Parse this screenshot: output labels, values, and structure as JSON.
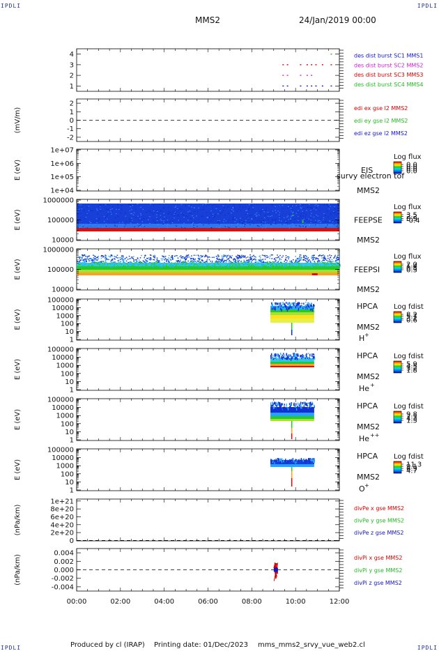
{
  "corners": {
    "tl": "IPDLI",
    "tr": "IPDLI",
    "bl": "IPDLI",
    "br": "IPDLI"
  },
  "header": {
    "spacecraft": "MMS2",
    "datetime": "24/Jan/2019 00:00"
  },
  "footer": {
    "producer": "Produced by cl (IRAP)",
    "printing": "Printing date: 01/Dec/2023",
    "file": "mms_mms2_srvy_vue_web2.cl"
  },
  "x_axis": {
    "ticks": [
      "00:00",
      "02:00",
      "04:00",
      "06:00",
      "08:00",
      "10:00",
      "12:00"
    ],
    "range_hours": [
      0,
      12
    ]
  },
  "colors": {
    "c_red": "#d40000",
    "c_green": "#22bb22",
    "c_blue": "#1414c8",
    "c_mag": "#cc22cc"
  },
  "chart_data": [
    {
      "type": "scatter",
      "ylim": [
        0.5,
        4.5
      ],
      "yticks": [
        "1",
        "2",
        "3",
        "4"
      ],
      "legend": [
        "des dist burst SC1 MMS1",
        "des dist burst SC2 MMS2",
        "des dist burst SC3 MMS3",
        "des dist burst SC4 MMS4"
      ],
      "series": [
        {
          "y": 4,
          "x": [
            11.6
          ]
        },
        {
          "y": 3,
          "x": [
            9.4,
            9.6,
            10.2,
            10.5,
            10.7,
            10.9,
            11.2,
            11.6
          ]
        },
        {
          "y": 2,
          "x": [
            9.4,
            9.6,
            10.2,
            10.5,
            10.7
          ]
        },
        {
          "y": 1,
          "x": [
            9.4,
            9.6,
            10.2,
            10.5,
            10.7,
            10.9,
            11.2,
            11.6
          ]
        }
      ]
    },
    {
      "type": "line",
      "ylabel": "(mV/m)",
      "ylim": [
        -2.5,
        2.5
      ],
      "yticks": [
        "-2",
        "-1",
        "0",
        "1",
        "2"
      ],
      "legend": [
        "edi ex gse l2 MMS2",
        "edi ey gse l2 MMS2",
        "edi ez gse l2 MMS2"
      ]
    },
    {
      "type": "heatmap",
      "ylabel": "E (eV)",
      "yticks": [
        "1e+04",
        "1e+05",
        "1e+06",
        "1e+07"
      ],
      "instrument": "EIS",
      "spacecraft": "MMS2",
      "overlay_text": "survy electron tof",
      "cbar_title": "Log flux",
      "cbar_ticks": [
        "0.0",
        "0.0",
        "0.0",
        "0.0"
      ]
    },
    {
      "type": "heatmap",
      "ylabel": "E (eV)",
      "yticks": [
        "10000",
        "100000",
        "1000000"
      ],
      "instrument": "FEEPSE",
      "spacecraft": "MMS2",
      "cbar_title": "Log flux",
      "cbar_ticks": [
        "3.5",
        "2.2",
        "0.9",
        "-0.4"
      ]
    },
    {
      "type": "heatmap",
      "ylabel": "E (eV)",
      "yticks": [
        "10000",
        "100000",
        "1000000"
      ],
      "instrument": "FEEPSI",
      "spacecraft": "MMS2",
      "cbar_title": "Log flux",
      "cbar_ticks": [
        "2.0",
        "1.4",
        "0.8",
        "0.3"
      ]
    },
    {
      "type": "heatmap",
      "ylabel": "E (eV)",
      "yticks": [
        "1",
        "10",
        "100",
        "1000",
        "10000",
        "100000"
      ],
      "instrument": "HPCA",
      "spacecraft": "MMS2",
      "species": "H",
      "species_sup": "+",
      "cbar_title": "Log fdist",
      "cbar_ticks": [
        "8.2",
        "5.7",
        "3.2",
        "0.6"
      ]
    },
    {
      "type": "heatmap",
      "ylabel": "E (eV)",
      "yticks": [
        "1",
        "10",
        "100",
        "1000",
        "10000",
        "100000"
      ],
      "instrument": "HPCA",
      "spacecraft": "MMS2",
      "species": "He",
      "species_sup": "+",
      "cbar_title": "Log fdist",
      "cbar_ticks": [
        "5.9",
        "4.5",
        "3.2",
        "1.8"
      ]
    },
    {
      "type": "heatmap",
      "ylabel": "E (eV)",
      "yticks": [
        "1",
        "10",
        "100",
        "1000",
        "10000",
        "100000"
      ],
      "instrument": "HPCA",
      "spacecraft": "MMS2",
      "species": "He",
      "species_sup": "++",
      "cbar_title": "Log fdist",
      "cbar_ticks": [
        "9.8",
        "7.1",
        "4.3",
        "1.5"
      ]
    },
    {
      "type": "heatmap",
      "ylabel": "E (eV)",
      "yticks": [
        "1",
        "10",
        "100",
        "1000",
        "10000",
        "100000"
      ],
      "instrument": "HPCA",
      "spacecraft": "MMS2",
      "species": "O",
      "species_sup": "+",
      "cbar_title": "Log fdist",
      "cbar_ticks": [
        "11.3",
        "9.1",
        "6.9",
        "4.7"
      ]
    },
    {
      "type": "line",
      "ylabel": "(nPa/km)",
      "ylim": [
        -1e+19,
        1.05e+21
      ],
      "yticks": [
        "0",
        "2e+20",
        "4e+20",
        "6e+20",
        "8e+20",
        "1e+21"
      ],
      "legend": [
        "divPe x gse MMS2",
        "divPe y gse MMS2",
        "divPe z gse MMS2"
      ]
    },
    {
      "type": "line",
      "ylabel": "(nPa/km)",
      "ylim": [
        -0.005,
        0.005
      ],
      "yticks": [
        "-0.004",
        "-0.002",
        "0.000",
        "0.002",
        "0.004"
      ],
      "legend": [
        "divPi x gse MMS2",
        "divPi y gse MMS2",
        "divPi z gse MMS2"
      ]
    }
  ]
}
